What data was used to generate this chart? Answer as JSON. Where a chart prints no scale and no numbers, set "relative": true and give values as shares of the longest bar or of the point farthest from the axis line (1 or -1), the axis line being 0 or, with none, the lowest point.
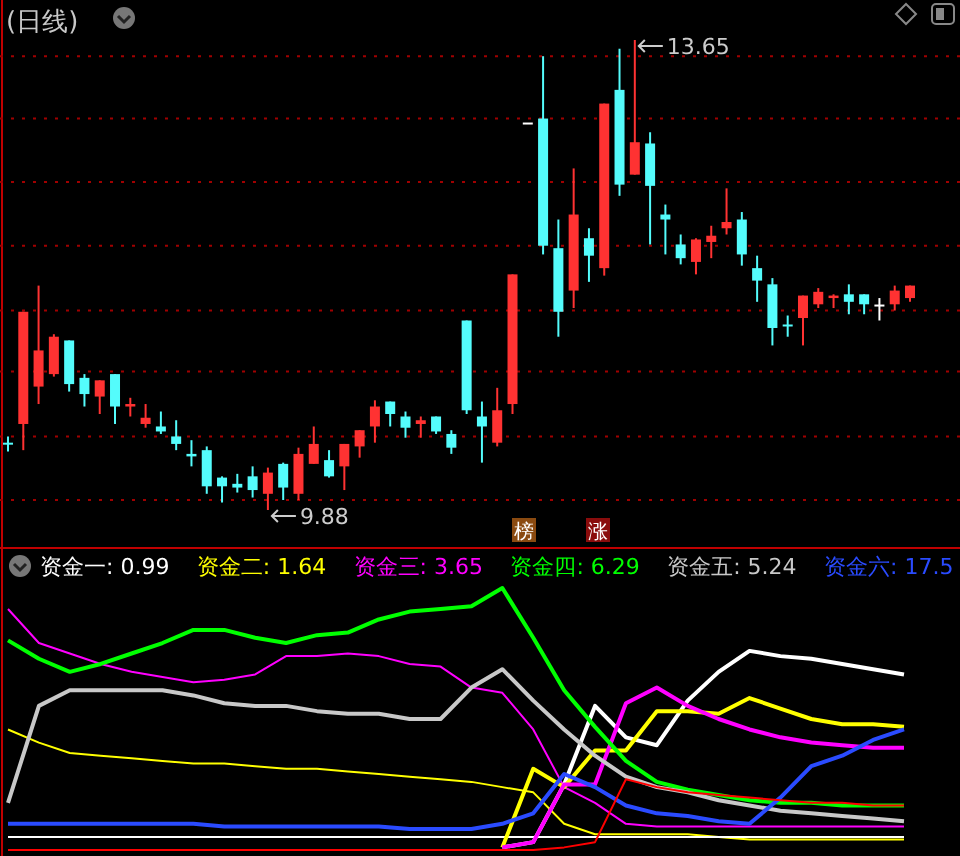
{
  "chart_data": [
    {
      "type": "candlestick",
      "title": "(日线)",
      "categories": [
        null,
        null,
        null,
        null,
        null,
        null,
        null,
        null,
        null,
        null,
        null,
        null,
        null,
        null,
        null,
        null,
        null,
        null,
        null,
        null,
        null,
        null,
        null,
        null,
        null,
        null,
        null,
        null,
        null,
        null,
        null,
        null,
        null,
        null,
        null,
        null,
        null,
        null,
        null,
        null,
        null,
        null,
        null,
        null,
        null,
        null,
        null,
        null,
        null,
        null,
        null,
        null,
        null,
        null,
        null,
        null,
        null,
        null,
        null,
        null
      ],
      "ohlc": [
        [
          10.42,
          10.47,
          10.35,
          10.41
        ],
        [
          10.57,
          11.47,
          10.36,
          11.47
        ],
        [
          10.87,
          11.68,
          10.73,
          11.16
        ],
        [
          10.97,
          11.29,
          10.95,
          11.27
        ],
        [
          11.24,
          11.24,
          10.83,
          10.89
        ],
        [
          10.94,
          10.97,
          10.71,
          10.81
        ],
        [
          10.79,
          10.92,
          10.65,
          10.92
        ],
        [
          10.97,
          10.97,
          10.57,
          10.71
        ],
        [
          10.71,
          10.78,
          10.63,
          10.73
        ],
        [
          10.57,
          10.73,
          10.54,
          10.62
        ],
        [
          10.55,
          10.67,
          10.49,
          10.51
        ],
        [
          10.47,
          10.6,
          10.36,
          10.41
        ],
        [
          10.33,
          10.44,
          10.23,
          10.31
        ],
        [
          10.36,
          10.39,
          10.01,
          10.07
        ],
        [
          10.14,
          10.15,
          9.94,
          10.07
        ],
        [
          10.09,
          10.17,
          10.02,
          10.06
        ],
        [
          10.15,
          10.23,
          9.98,
          10.04
        ],
        [
          10.01,
          10.22,
          9.88,
          10.18
        ],
        [
          10.25,
          10.26,
          9.96,
          10.06
        ],
        [
          10.01,
          10.38,
          9.96,
          10.33
        ],
        [
          10.25,
          10.55,
          10.25,
          10.41
        ],
        [
          10.28,
          10.36,
          10.14,
          10.15
        ],
        [
          10.23,
          10.41,
          10.04,
          10.41
        ],
        [
          10.39,
          10.52,
          10.3,
          10.52
        ],
        [
          10.55,
          10.76,
          10.42,
          10.71
        ],
        [
          10.75,
          10.75,
          10.55,
          10.65
        ],
        [
          10.63,
          10.67,
          10.46,
          10.54
        ],
        [
          10.57,
          10.63,
          10.46,
          10.6
        ],
        [
          10.63,
          10.63,
          10.49,
          10.51
        ],
        [
          10.49,
          10.52,
          10.33,
          10.38
        ],
        [
          11.4,
          11.4,
          10.65,
          10.68
        ],
        [
          10.63,
          10.75,
          10.26,
          10.55
        ],
        [
          10.42,
          10.86,
          10.39,
          10.68
        ],
        [
          10.73,
          11.77,
          10.65,
          11.77
        ],
        [
          12.98,
          12.98,
          12.98,
          12.98
        ],
        [
          13.02,
          13.52,
          11.93,
          12.0
        ],
        [
          11.98,
          12.21,
          11.27,
          11.47
        ],
        [
          11.64,
          12.62,
          11.5,
          12.25
        ],
        [
          12.06,
          12.14,
          11.71,
          11.92
        ],
        [
          11.82,
          13.14,
          11.76,
          13.14
        ],
        [
          13.25,
          13.58,
          12.4,
          12.49
        ],
        [
          12.57,
          13.65,
          12.57,
          12.83
        ],
        [
          12.82,
          12.91,
          12.01,
          12.48
        ],
        [
          12.25,
          12.33,
          11.93,
          12.21
        ],
        [
          12.01,
          12.09,
          11.85,
          11.9
        ],
        [
          11.87,
          12.06,
          11.77,
          12.05
        ],
        [
          12.03,
          12.16,
          11.9,
          12.08
        ],
        [
          12.14,
          12.46,
          12.09,
          12.19
        ],
        [
          12.21,
          12.27,
          11.84,
          11.93
        ],
        [
          11.82,
          11.92,
          11.55,
          11.72
        ],
        [
          11.69,
          11.74,
          11.2,
          11.34
        ],
        [
          11.36,
          11.44,
          11.27,
          11.36
        ],
        [
          11.42,
          11.6,
          11.2,
          11.6
        ],
        [
          11.53,
          11.66,
          11.5,
          11.63
        ],
        [
          11.58,
          11.61,
          11.5,
          11.6
        ],
        [
          11.61,
          11.69,
          11.45,
          11.55
        ],
        [
          11.61,
          11.61,
          11.45,
          11.53
        ],
        [
          11.52,
          11.58,
          11.4,
          11.52
        ],
        [
          11.53,
          11.68,
          11.48,
          11.64
        ],
        [
          11.58,
          11.68,
          11.55,
          11.68
        ]
      ],
      "colors": [
        "#54fcfc",
        "#ff3232",
        "#ff3232",
        "#ff3232",
        "#54fcfc",
        "#54fcfc",
        "#ff3232",
        "#54fcfc",
        "#ff3232",
        "#ff3232",
        "#54fcfc",
        "#54fcfc",
        "#54fcfc",
        "#54fcfc",
        "#54fcfc",
        "#54fcfc",
        "#54fcfc",
        "#ff3232",
        "#54fcfc",
        "#ff3232",
        "#ff3232",
        "#54fcfc",
        "#ff3232",
        "#ff3232",
        "#ff3232",
        "#54fcfc",
        "#54fcfc",
        "#ff3232",
        "#54fcfc",
        "#54fcfc",
        "#54fcfc",
        "#54fcfc",
        "#ff3232",
        "#ff3232",
        "#ffffff",
        "#54fcfc",
        "#54fcfc",
        "#ff3232",
        "#54fcfc",
        "#ff3232",
        "#54fcfc",
        "#ff3232",
        "#54fcfc",
        "#54fcfc",
        "#54fcfc",
        "#ff3232",
        "#ff3232",
        "#ff3232",
        "#54fcfc",
        "#54fcfc",
        "#54fcfc",
        "#54fcfc",
        "#ff3232",
        "#ff3232",
        "#ff3232",
        "#54fcfc",
        "#54fcfc",
        "#ffffff",
        "#ff3232",
        "#ff3232"
      ],
      "yticks": [
        {
          "value": 13.52,
          "label": null
        },
        {
          "value": 13.02,
          "label": null
        },
        {
          "value": 12.51,
          "label": null
        },
        {
          "value": 12.0,
          "label": null
        },
        {
          "value": 11.48,
          "label": null
        },
        {
          "value": 10.99,
          "label": null
        },
        {
          "value": 10.47,
          "label": null
        },
        {
          "value": 9.96,
          "label": null
        }
      ],
      "grid": true,
      "annotations": [
        "13.65",
        "9.88",
        "榜",
        "涨"
      ]
    },
    {
      "type": "line",
      "relative": true,
      "legend": "top left",
      "categories": [
        null,
        null,
        null,
        null,
        null,
        null,
        null,
        null,
        null,
        null,
        null,
        null,
        null,
        null,
        null,
        null,
        null,
        null,
        null,
        null,
        null,
        null,
        null,
        null,
        null,
        null,
        null,
        null,
        null,
        null
      ],
      "series": [
        {
          "color": "#ff00ff",
          "values": [
            0.92,
            0.79,
            0.75,
            0.71,
            0.68,
            0.66,
            0.64,
            0.65,
            0.67,
            0.74,
            0.74,
            0.75,
            0.74,
            0.71,
            0.7,
            0.62,
            0.6,
            0.46,
            0.24,
            0.18,
            0.1,
            0.09,
            0.09,
            0.09,
            0.09,
            0.09,
            0.09,
            0.09,
            0.09,
            0.09
          ]
        },
        {
          "color": "#ffff00",
          "values": [
            0.46,
            0.41,
            0.37,
            0.36,
            0.35,
            0.34,
            0.33,
            0.33,
            0.32,
            0.31,
            0.31,
            0.3,
            0.29,
            0.28,
            0.27,
            0.26,
            0.24,
            0.22,
            0.1,
            0.06,
            0.06,
            0.06,
            0.06,
            0.05,
            0.04,
            0.04,
            0.04,
            0.04,
            0.04,
            0.04
          ]
        },
        {
          "color": "#ffffff",
          "values": [
            0.05,
            0.05,
            0.05,
            0.05,
            0.05,
            0.05,
            0.05,
            0.05,
            0.05,
            0.05,
            0.05,
            0.05,
            0.05,
            0.05,
            0.05,
            0.05,
            0.05,
            0.05,
            0.05,
            0.05,
            0.05,
            0.05,
            0.05,
            0.05,
            0.05,
            0.05,
            0.05,
            0.05,
            0.05,
            0.05
          ]
        },
        {
          "name": "资金一: 0.99",
          "color": "#ffffff",
          "values": [
            null,
            null,
            null,
            null,
            null,
            null,
            null,
            null,
            null,
            null,
            null,
            null,
            null,
            null,
            null,
            null,
            0.01,
            0.03,
            0.25,
            0.55,
            0.43,
            0.4,
            0.57,
            0.68,
            0.76,
            0.74,
            0.73,
            0.71,
            0.69,
            0.67
          ]
        },
        {
          "name": "资金二: 1.64",
          "color": "#ffff00",
          "values": [
            null,
            null,
            null,
            null,
            null,
            null,
            null,
            null,
            null,
            null,
            null,
            null,
            null,
            null,
            null,
            null,
            0.01,
            0.31,
            0.24,
            0.38,
            0.38,
            0.53,
            0.53,
            0.52,
            0.58,
            0.54,
            0.5,
            0.48,
            0.48,
            0.47
          ]
        },
        {
          "name": "资金三: 3.65",
          "color": "#ff00ff",
          "values": [
            null,
            null,
            null,
            null,
            null,
            null,
            null,
            null,
            null,
            null,
            null,
            null,
            null,
            null,
            null,
            null,
            0.01,
            0.03,
            0.25,
            0.25,
            0.56,
            0.62,
            0.55,
            0.5,
            0.46,
            0.43,
            0.41,
            0.4,
            0.39,
            0.39
          ]
        },
        {
          "name": "资金四: 6.29",
          "color": "#00ff00",
          "values": [
            0.8,
            0.73,
            0.68,
            0.71,
            0.75,
            0.79,
            0.84,
            0.84,
            0.81,
            0.79,
            0.82,
            0.83,
            0.88,
            0.91,
            0.92,
            0.93,
            1.0,
            0.81,
            0.61,
            0.47,
            0.34,
            0.26,
            0.23,
            0.21,
            0.19,
            0.18,
            0.18,
            0.17,
            0.17,
            0.17
          ]
        },
        {
          "name": "资金五: 5.24",
          "color": "#c8c8c8",
          "values": [
            0.18,
            0.55,
            0.61,
            0.61,
            0.61,
            0.61,
            0.59,
            0.56,
            0.55,
            0.55,
            0.53,
            0.52,
            0.52,
            0.5,
            0.5,
            0.62,
            0.69,
            0.57,
            0.46,
            0.36,
            0.28,
            0.24,
            0.22,
            0.19,
            0.17,
            0.15,
            0.14,
            0.13,
            0.12,
            0.11
          ]
        },
        {
          "name": "资金六: 17.5",
          "color": "#2a4bff",
          "values": [
            0.1,
            0.1,
            0.1,
            0.1,
            0.1,
            0.1,
            0.1,
            0.09,
            0.09,
            0.09,
            0.09,
            0.09,
            0.09,
            0.08,
            0.08,
            0.08,
            0.1,
            0.14,
            0.29,
            0.24,
            0.17,
            0.14,
            0.13,
            0.11,
            0.1,
            0.2,
            0.32,
            0.36,
            0.42,
            0.46
          ]
        },
        {
          "color": "#ff0000",
          "values": [
            0,
            0,
            0,
            0,
            0,
            0,
            0,
            0,
            0,
            0,
            0,
            0,
            0,
            0,
            0,
            0,
            0,
            0,
            0.01,
            0.03,
            0.27,
            0.24,
            0.22,
            0.21,
            0.2,
            0.19,
            0.18,
            0.18,
            0.17,
            0.17
          ]
        }
      ]
    }
  ]
}
